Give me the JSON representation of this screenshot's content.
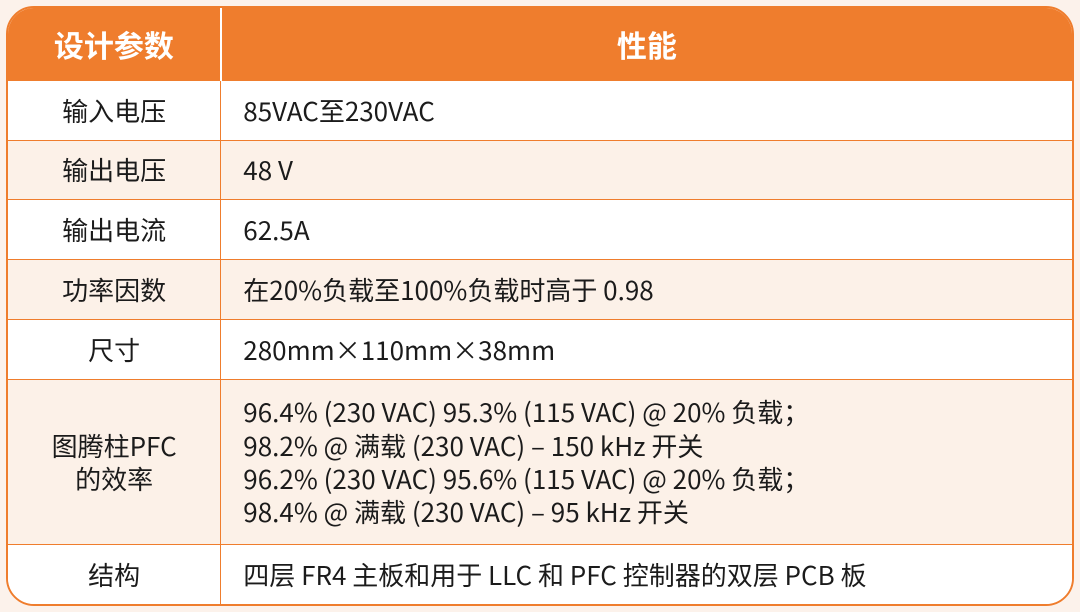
{
  "table": {
    "type": "table",
    "header_bg": "#ef7d2d",
    "header_fg": "#ffffff",
    "border_color": "#ef7d2d",
    "row_alt_bg": "#fcf1e8",
    "row_bg": "#ffffff",
    "text_color": "#1b1b1b",
    "header_fontsize": 30,
    "cell_fontsize": 26,
    "col_widths": [
      "20%",
      "80%"
    ],
    "columns": [
      "设计参数",
      "性能"
    ],
    "rows": [
      {
        "param": "输入电压",
        "value": "85VAC至230VAC"
      },
      {
        "param": "输出电压",
        "value": "48 V"
      },
      {
        "param": "输出电流",
        "value": "62.5A"
      },
      {
        "param": "功率因数",
        "value": "在20%负载至100%负载时高于 0.98"
      },
      {
        "param": "尺寸",
        "value": "280mm×110mm×38mm"
      },
      {
        "param": "图腾柱PFC\n的效率",
        "value": "96.4% (230 VAC) 95.3% (115 VAC) @ 20% 负载；\n98.2% @ 满载 (230 VAC) – 150 kHz 开关\n96.2% (230 VAC) 95.6% (115 VAC) @ 20% 负载；\n98.4% @ 满载 (230 VAC) – 95 kHz 开关"
      },
      {
        "param": "结构",
        "value": "四层 FR4 主板和用于 LLC 和 PFC 控制器的双层 PCB 板"
      }
    ]
  }
}
